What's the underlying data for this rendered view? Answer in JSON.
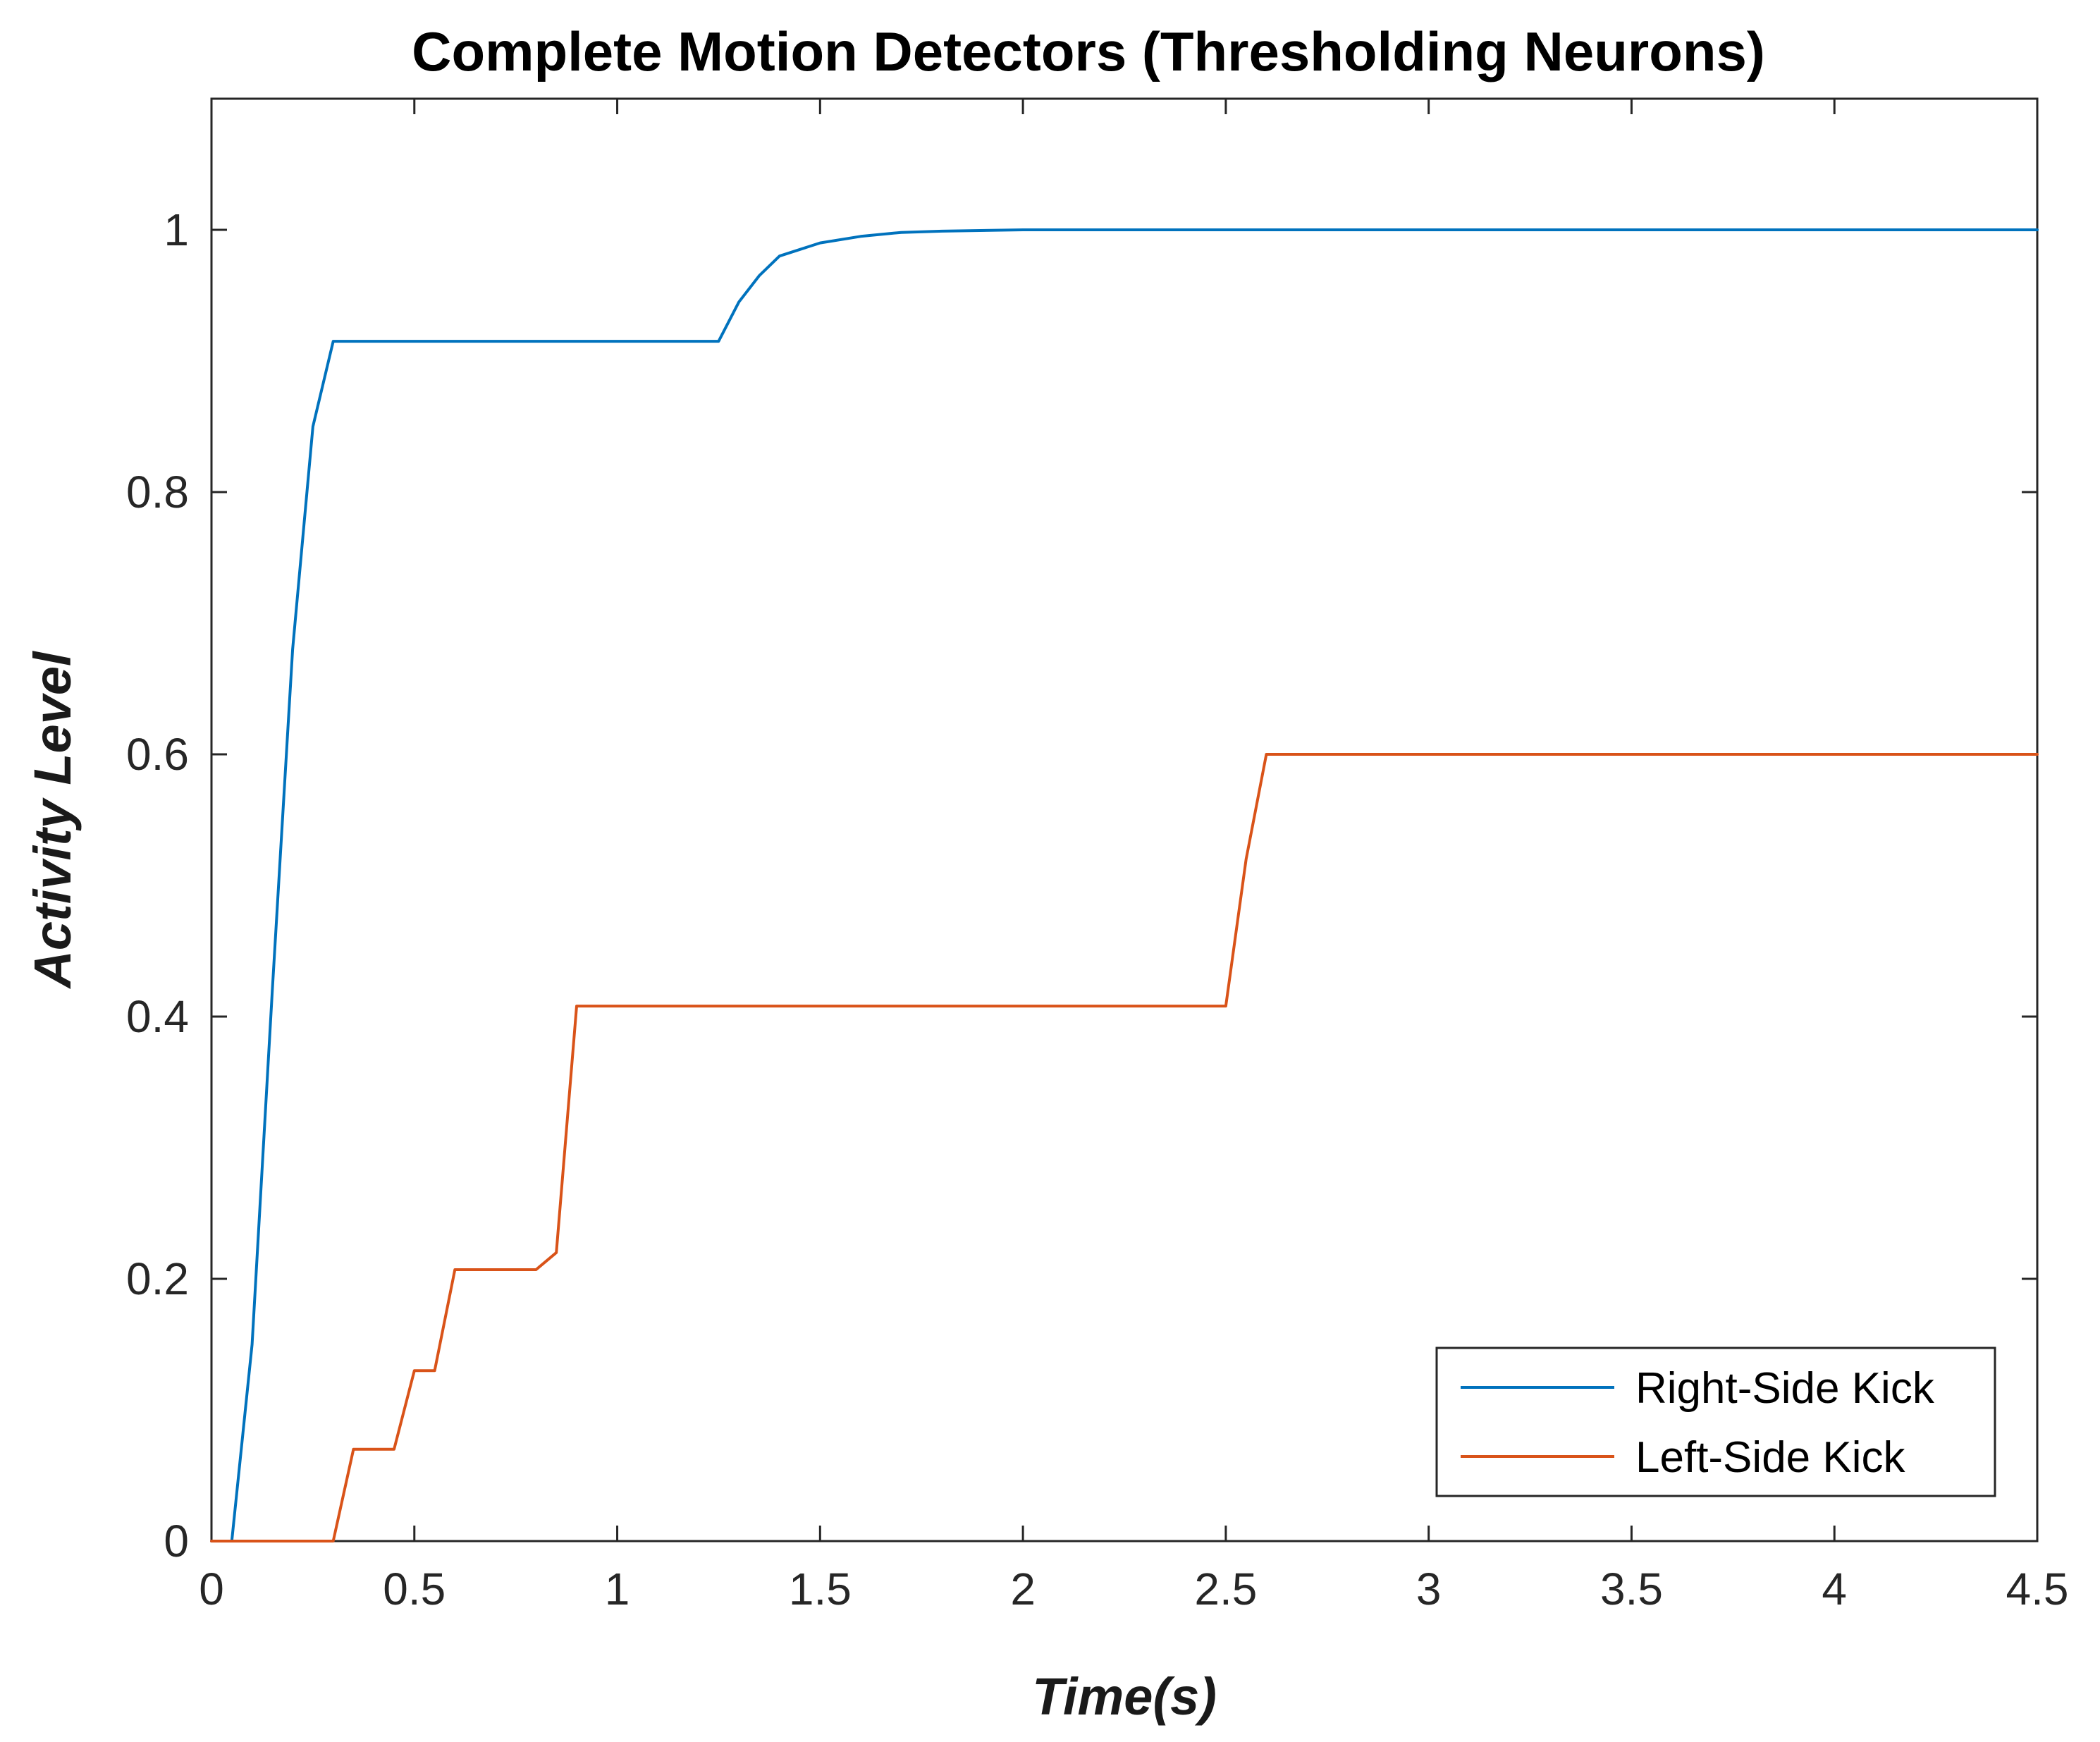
{
  "chart_data": {
    "type": "line",
    "title": "Complete Motion Detectors (Thresholding Neurons)",
    "xlabel": "Time(s)",
    "ylabel": "Activity Level",
    "xlim": [
      0,
      4.5
    ],
    "ylim": [
      0,
      1.1
    ],
    "x_ticks": [
      0,
      0.5,
      1,
      1.5,
      2,
      2.5,
      3,
      3.5,
      4,
      4.5
    ],
    "x_tick_labels": [
      "0",
      "0.5",
      "1",
      "1.5",
      "2",
      "2.5",
      "3",
      "3.5",
      "4",
      "4.5"
    ],
    "y_ticks": [
      0,
      0.2,
      0.4,
      0.6,
      0.8,
      1
    ],
    "y_tick_labels": [
      "0",
      "0.2",
      "0.4",
      "0.6",
      "0.8",
      "1"
    ],
    "grid": false,
    "legend_position": "bottom-right",
    "series": [
      {
        "name": "Right-Side Kick",
        "color": "#0072BD",
        "x": [
          0,
          0.05,
          0.1,
          0.15,
          0.2,
          0.25,
          0.3,
          0.5,
          1.0,
          1.25,
          1.3,
          1.35,
          1.4,
          1.5,
          1.6,
          1.7,
          1.8,
          2.0,
          2.5,
          3.0,
          3.5,
          4.0,
          4.5
        ],
        "y": [
          0,
          0,
          0.15,
          0.42,
          0.68,
          0.85,
          0.915,
          0.915,
          0.915,
          0.915,
          0.945,
          0.965,
          0.98,
          0.99,
          0.995,
          0.998,
          0.999,
          1,
          1,
          1,
          1,
          1,
          1
        ]
      },
      {
        "name": "Left-Side Kick",
        "color": "#D95319",
        "x": [
          0,
          0.3,
          0.35,
          0.45,
          0.5,
          0.55,
          0.6,
          0.8,
          0.85,
          0.9,
          1.5,
          2.0,
          2.5,
          2.55,
          2.6,
          3.0,
          3.5,
          4.0,
          4.5
        ],
        "y": [
          0,
          0,
          0.07,
          0.07,
          0.13,
          0.13,
          0.207,
          0.207,
          0.22,
          0.408,
          0.408,
          0.408,
          0.408,
          0.52,
          0.6,
          0.6,
          0.6,
          0.6,
          0.6
        ]
      }
    ]
  }
}
